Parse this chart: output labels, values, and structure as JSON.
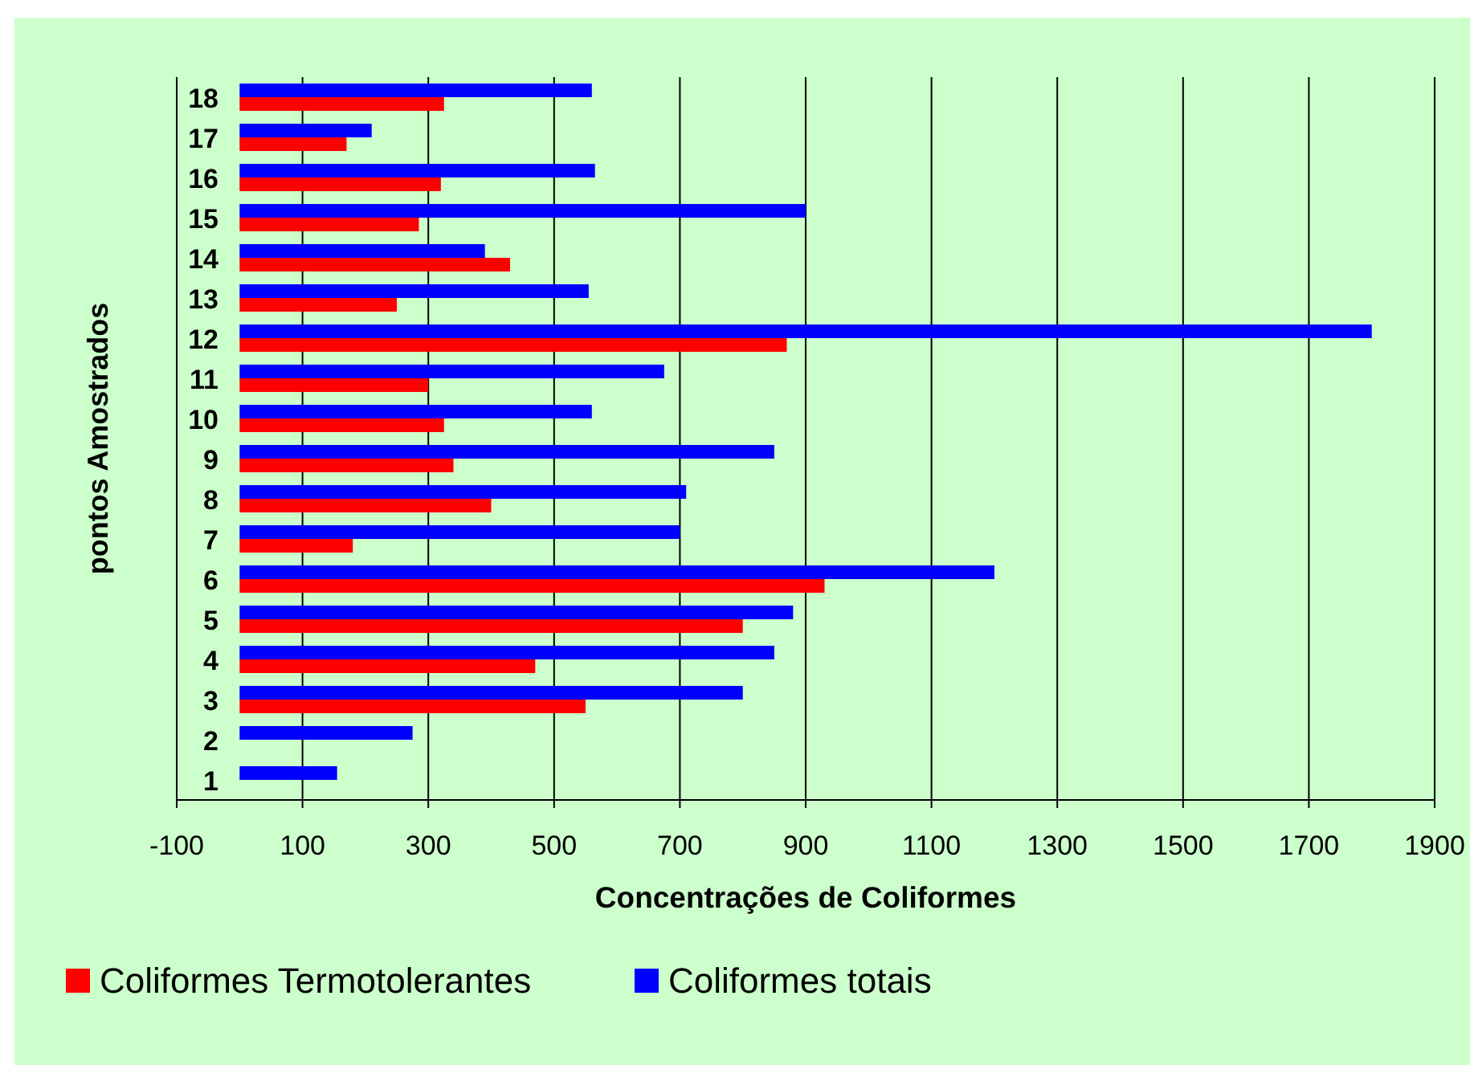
{
  "chart_data": {
    "type": "bar",
    "orientation": "horizontal",
    "xlabel": "Concentrações de Coliformes",
    "ylabel": "pontos Amostrados",
    "categories": [
      "18",
      "17",
      "16",
      "15",
      "14",
      "13",
      "12",
      "11",
      "10",
      "9",
      "8",
      "7",
      "6",
      "5",
      "4",
      "3",
      "2",
      "1"
    ],
    "series": [
      {
        "name": "Coliformes Termotolerantes",
        "color": "#ff0000",
        "values": [
          325,
          170,
          320,
          285,
          430,
          250,
          870,
          300,
          325,
          340,
          400,
          180,
          930,
          800,
          470,
          550,
          null,
          null
        ]
      },
      {
        "name": "Coliformes totais",
        "color": "#0000ff",
        "values": [
          560,
          210,
          565,
          900,
          390,
          555,
          1800,
          675,
          560,
          850,
          710,
          700,
          1200,
          880,
          850,
          800,
          275,
          155
        ]
      }
    ],
    "xlim": [
      -100,
      1900
    ],
    "xticks": [
      -100,
      100,
      300,
      500,
      700,
      900,
      1100,
      1300,
      1500,
      1700,
      1900
    ],
    "grid": "x",
    "legend": "bottom"
  }
}
